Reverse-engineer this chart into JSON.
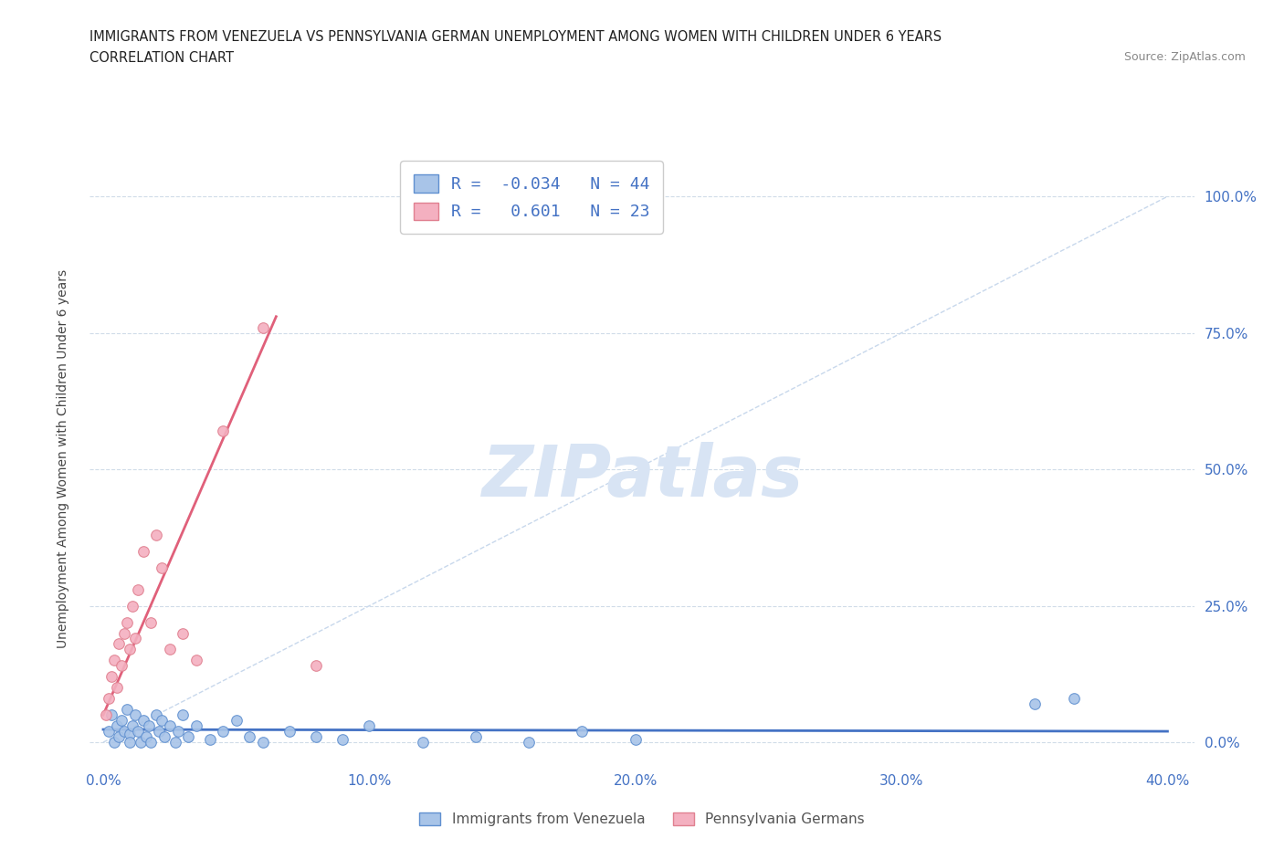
{
  "title_line1": "IMMIGRANTS FROM VENEZUELA VS PENNSYLVANIA GERMAN UNEMPLOYMENT AMONG WOMEN WITH CHILDREN UNDER 6 YEARS",
  "title_line2": "CORRELATION CHART",
  "source": "Source: ZipAtlas.com",
  "xlabel_ticks": [
    "0.0%",
    "10.0%",
    "20.0%",
    "30.0%",
    "40.0%"
  ],
  "xlabel_vals": [
    0,
    10,
    20,
    30,
    40
  ],
  "ylabel_ticks": [
    "0.0%",
    "25.0%",
    "50.0%",
    "75.0%",
    "100.0%"
  ],
  "ylabel_vals": [
    0,
    25,
    50,
    75,
    100
  ],
  "ylabel_label": "Unemployment Among Women with Children Under 6 years",
  "xlim": [
    -0.5,
    41
  ],
  "ylim": [
    -4,
    108
  ],
  "legend_label1": "Immigrants from Venezuela",
  "legend_label2": "Pennsylvania Germans",
  "R1": -0.034,
  "N1": 44,
  "R2": 0.601,
  "N2": 23,
  "color_blue": "#a8c4e8",
  "color_pink": "#f4b0c0",
  "color_blue_dark": "#6090d0",
  "color_pink_dark": "#e08090",
  "color_ref_line": "#c8d8ec",
  "color_trend_blue": "#4472c4",
  "color_trend_pink": "#e0607a",
  "watermark_color": "#d8e4f4",
  "blue_points": [
    [
      0.2,
      2.0
    ],
    [
      0.3,
      5.0
    ],
    [
      0.4,
      0.0
    ],
    [
      0.5,
      3.0
    ],
    [
      0.6,
      1.0
    ],
    [
      0.7,
      4.0
    ],
    [
      0.8,
      2.0
    ],
    [
      0.9,
      6.0
    ],
    [
      1.0,
      1.5
    ],
    [
      1.0,
      0.0
    ],
    [
      1.1,
      3.0
    ],
    [
      1.2,
      5.0
    ],
    [
      1.3,
      2.0
    ],
    [
      1.4,
      0.0
    ],
    [
      1.5,
      4.0
    ],
    [
      1.6,
      1.0
    ],
    [
      1.7,
      3.0
    ],
    [
      1.8,
      0.0
    ],
    [
      2.0,
      5.0
    ],
    [
      2.1,
      2.0
    ],
    [
      2.2,
      4.0
    ],
    [
      2.3,
      1.0
    ],
    [
      2.5,
      3.0
    ],
    [
      2.7,
      0.0
    ],
    [
      2.8,
      2.0
    ],
    [
      3.0,
      5.0
    ],
    [
      3.2,
      1.0
    ],
    [
      3.5,
      3.0
    ],
    [
      4.0,
      0.5
    ],
    [
      4.5,
      2.0
    ],
    [
      5.0,
      4.0
    ],
    [
      5.5,
      1.0
    ],
    [
      6.0,
      0.0
    ],
    [
      7.0,
      2.0
    ],
    [
      8.0,
      1.0
    ],
    [
      9.0,
      0.5
    ],
    [
      10.0,
      3.0
    ],
    [
      12.0,
      0.0
    ],
    [
      14.0,
      1.0
    ],
    [
      16.0,
      0.0
    ],
    [
      18.0,
      2.0
    ],
    [
      20.0,
      0.5
    ],
    [
      35.0,
      7.0
    ],
    [
      36.5,
      8.0
    ]
  ],
  "pink_points": [
    [
      0.1,
      5.0
    ],
    [
      0.2,
      8.0
    ],
    [
      0.3,
      12.0
    ],
    [
      0.4,
      15.0
    ],
    [
      0.5,
      10.0
    ],
    [
      0.6,
      18.0
    ],
    [
      0.7,
      14.0
    ],
    [
      0.8,
      20.0
    ],
    [
      0.9,
      22.0
    ],
    [
      1.0,
      17.0
    ],
    [
      1.1,
      25.0
    ],
    [
      1.2,
      19.0
    ],
    [
      1.3,
      28.0
    ],
    [
      1.5,
      35.0
    ],
    [
      1.8,
      22.0
    ],
    [
      2.0,
      38.0
    ],
    [
      2.2,
      32.0
    ],
    [
      2.5,
      17.0
    ],
    [
      3.0,
      20.0
    ],
    [
      3.5,
      15.0
    ],
    [
      4.5,
      57.0
    ],
    [
      6.0,
      76.0
    ],
    [
      8.0,
      14.0
    ]
  ],
  "pink_trend_x": [
    0.0,
    6.5
  ],
  "pink_trend_y": [
    5.0,
    78.0
  ]
}
